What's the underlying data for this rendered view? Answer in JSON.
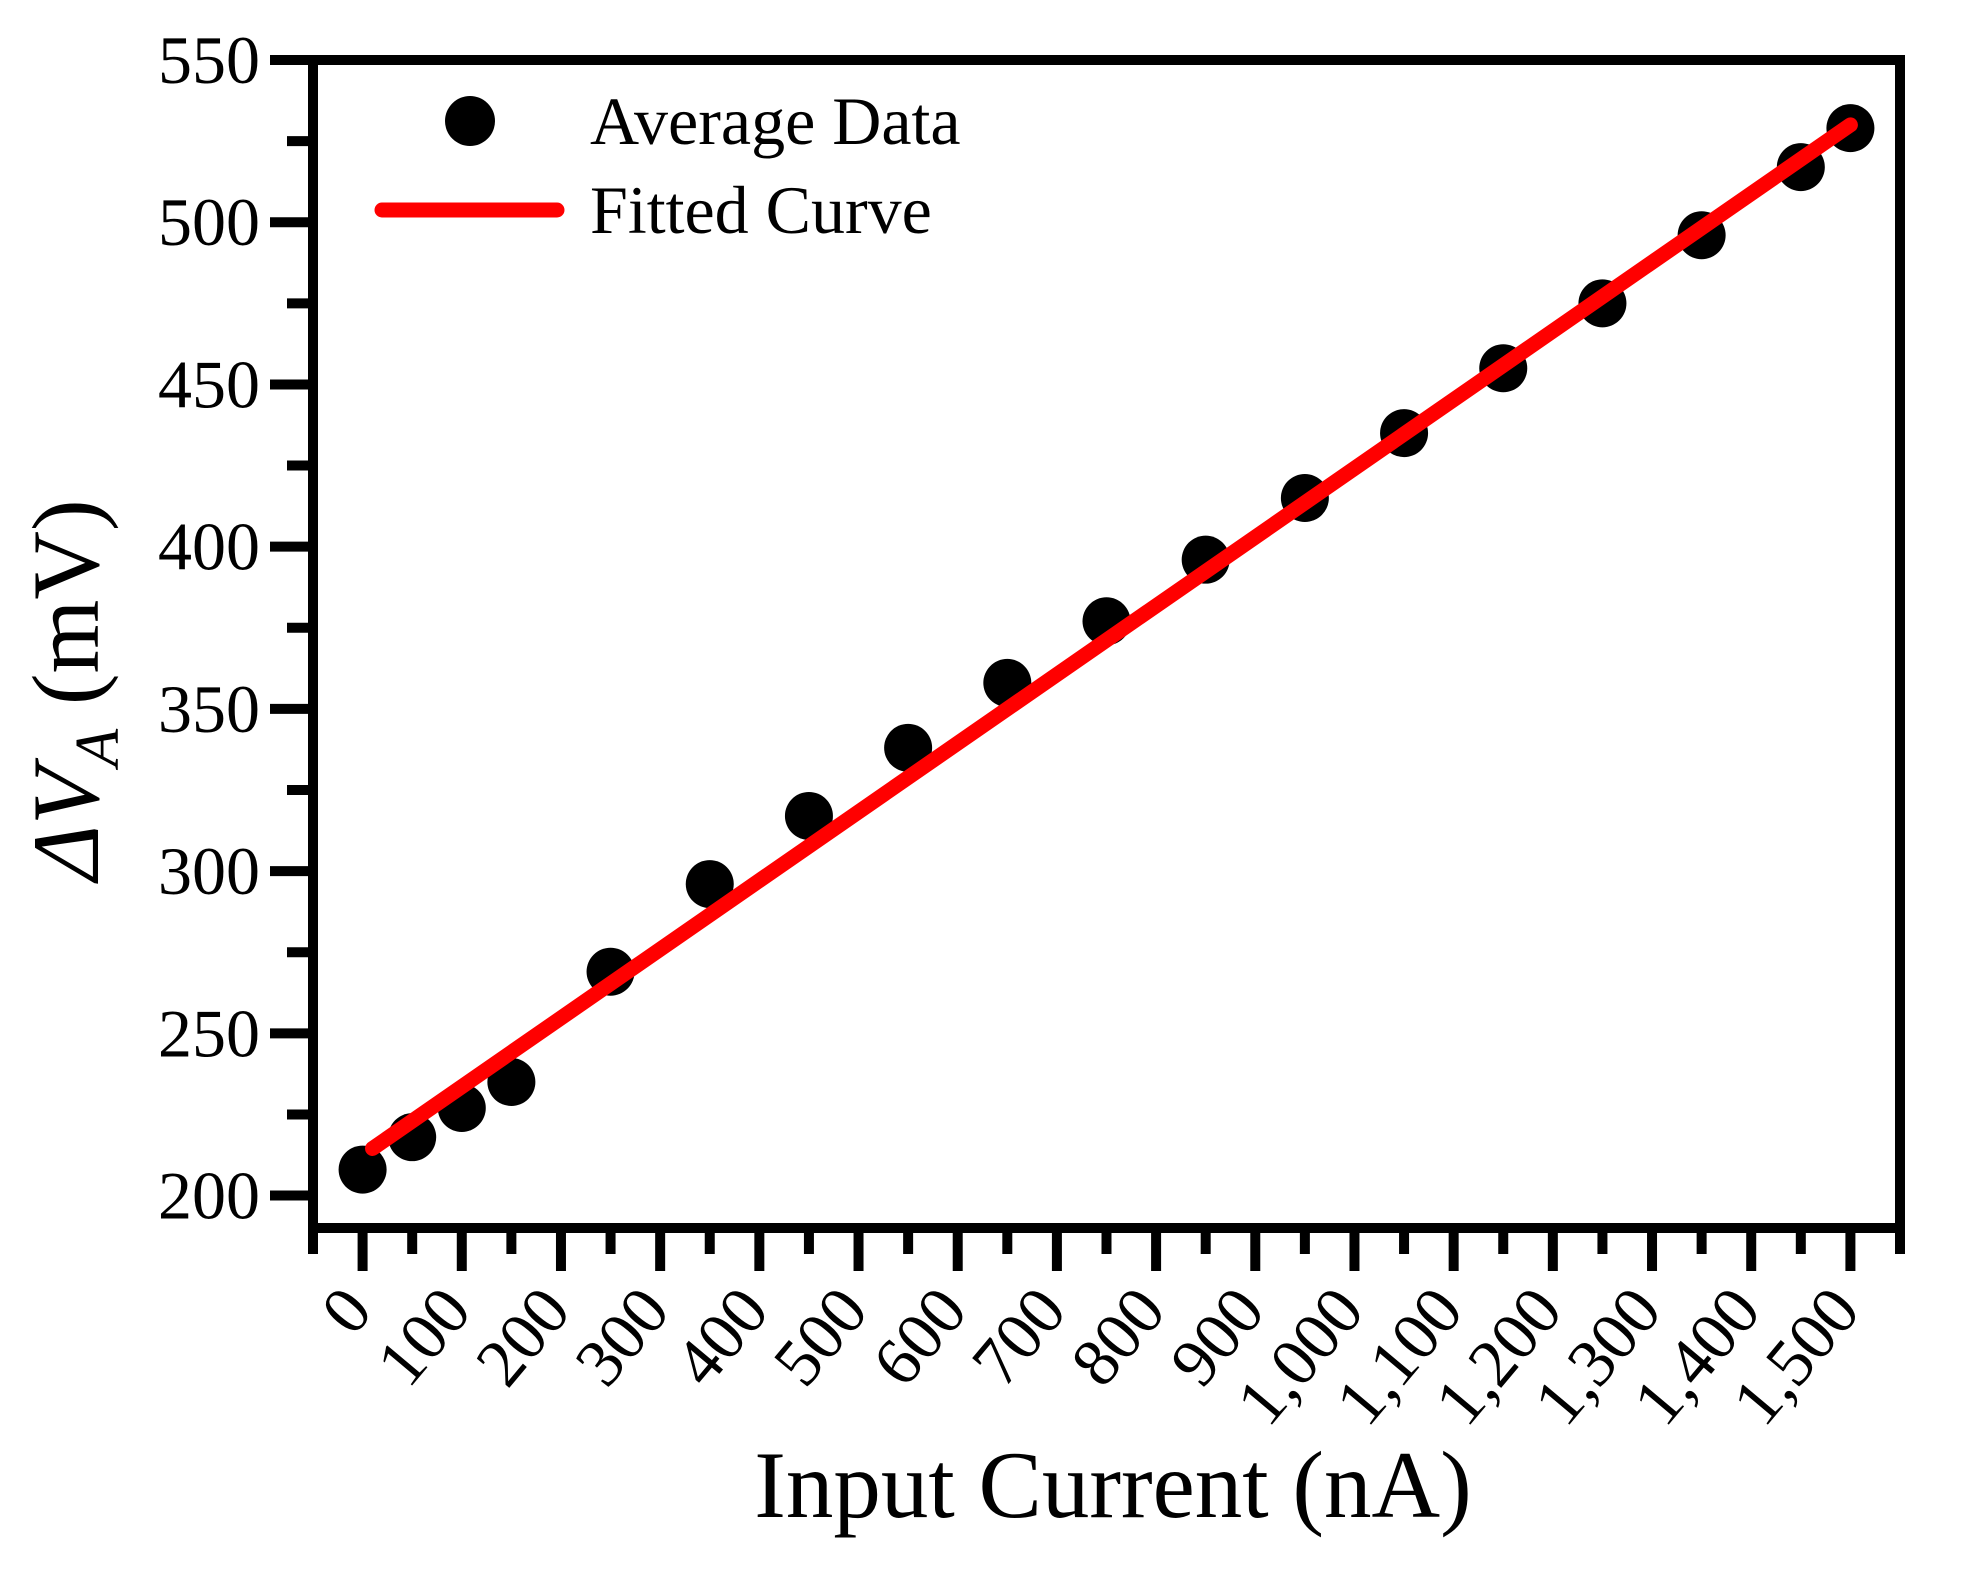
{
  "figure": {
    "background": "#ffffff"
  },
  "colors": {
    "axis": "#000000",
    "marker": "#000000",
    "fit_line": "#ff0000"
  },
  "chart_data": {
    "type": "scatter",
    "title": "",
    "xlabel": "Input Current (nA)",
    "ylabel": {
      "prefix": "ΔV",
      "subscript": "A",
      "suffix": " (mV)"
    },
    "xlim": [
      -50,
      1550
    ],
    "ylim": [
      190,
      550
    ],
    "grid": false,
    "x_ticks": {
      "values": [
        0,
        100,
        200,
        300,
        400,
        500,
        600,
        700,
        800,
        900,
        1000,
        1100,
        1200,
        1300,
        1400,
        1500
      ],
      "labels": [
        "0",
        "100",
        "200",
        "300",
        "400",
        "500",
        "600",
        "700",
        "800",
        "900",
        "1,000",
        "1,100",
        "1,200",
        "1,300",
        "1,400",
        "1,500"
      ],
      "minor": [
        -50,
        50,
        150,
        250,
        350,
        450,
        550,
        650,
        750,
        850,
        950,
        1050,
        1150,
        1250,
        1350,
        1450,
        1550
      ]
    },
    "y_ticks": {
      "values": [
        200,
        250,
        300,
        350,
        400,
        450,
        500,
        550
      ],
      "labels": [
        "200",
        "250",
        "300",
        "350",
        "400",
        "450",
        "500",
        "550"
      ],
      "minor": [
        225,
        275,
        325,
        375,
        425,
        475,
        525
      ]
    },
    "series": [
      {
        "name": "Average Data",
        "kind": "scatter",
        "color": "#000000",
        "x": [
          0,
          50,
          100,
          150,
          250,
          350,
          450,
          550,
          650,
          750,
          850,
          950,
          1050,
          1150,
          1250,
          1350,
          1450,
          1500
        ],
        "y": [
          208,
          218,
          227,
          235,
          269,
          296,
          317,
          338,
          358,
          377,
          396,
          415,
          435,
          455,
          475,
          496,
          517,
          529
        ]
      },
      {
        "name": "Fitted Curve",
        "kind": "line",
        "color": "#ff0000",
        "x": [
          10,
          1500
        ],
        "y": [
          214.5,
          530
        ]
      }
    ],
    "legend": {
      "position": "top-left",
      "items": [
        {
          "label": "Average Data",
          "marker": "circle",
          "color": "#000000"
        },
        {
          "label": "Fitted Curve",
          "marker": "line",
          "color": "#ff0000"
        }
      ]
    }
  }
}
